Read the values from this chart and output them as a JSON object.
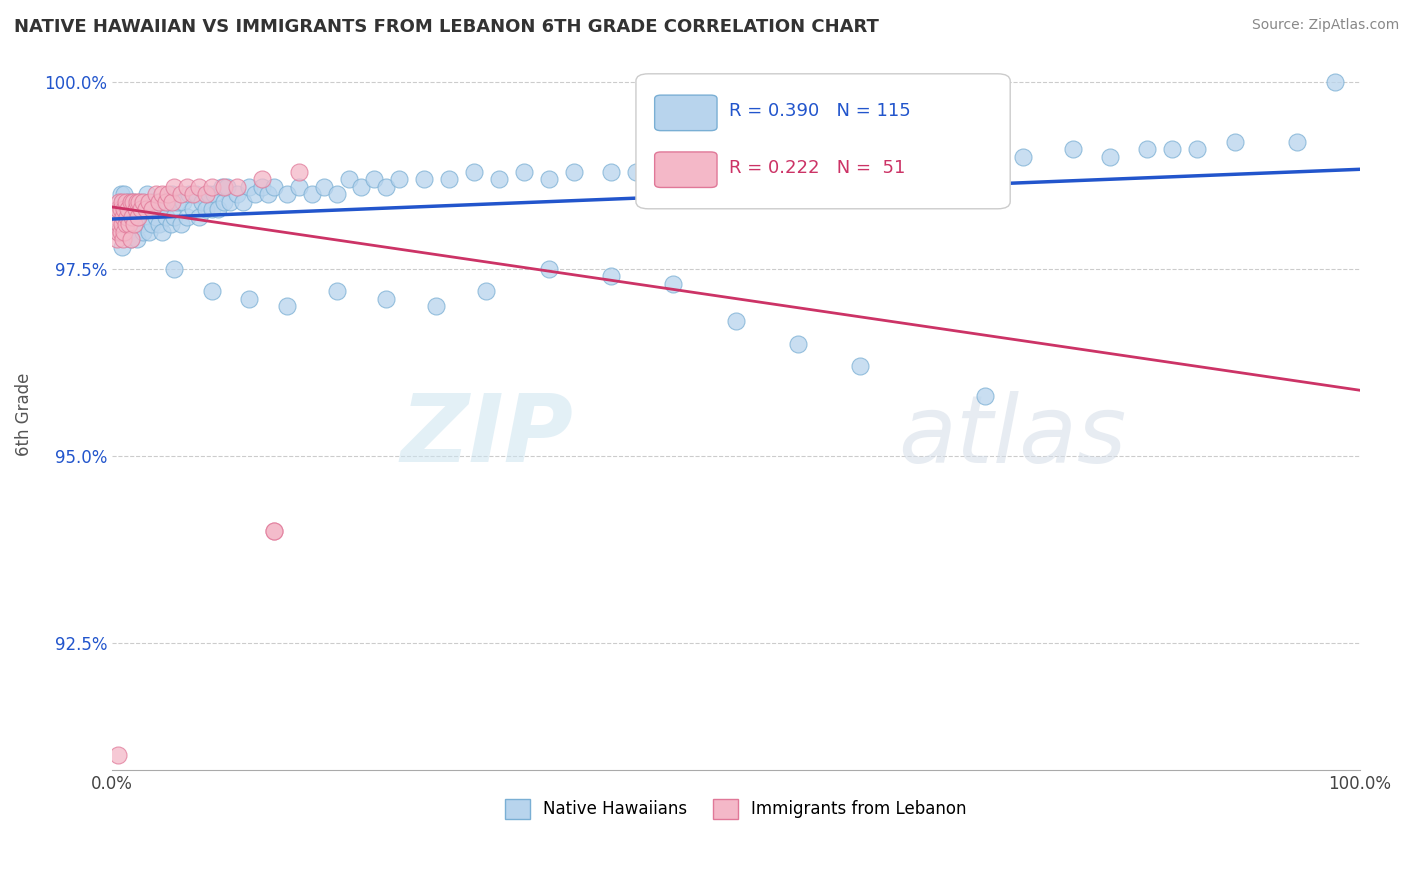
{
  "title": "NATIVE HAWAIIAN VS IMMIGRANTS FROM LEBANON 6TH GRADE CORRELATION CHART",
  "source": "Source: ZipAtlas.com",
  "ylabel": "6th Grade",
  "xmin": 0.0,
  "xmax": 1.0,
  "ymin": 0.908,
  "ymax": 1.003,
  "yticks": [
    0.925,
    0.95,
    0.975,
    1.0
  ],
  "ytick_labels": [
    "92.5%",
    "95.0%",
    "97.5%",
    "100.0%"
  ],
  "xticks": [
    0.0,
    1.0
  ],
  "xtick_labels": [
    "0.0%",
    "100.0%"
  ],
  "blue_fill": "#b8d4ed",
  "blue_edge": "#7aafd4",
  "blue_line": "#2255cc",
  "pink_fill": "#f4b8c8",
  "pink_edge": "#e07898",
  "pink_line": "#cc3366",
  "R_blue": 0.39,
  "N_blue": 115,
  "R_pink": 0.222,
  "N_pink": 51,
  "legend_blue": "Native Hawaiians",
  "legend_pink": "Immigrants from Lebanon",
  "watermark_zip": "ZIP",
  "watermark_atlas": "atlas",
  "blue_x": [
    0.005,
    0.005,
    0.007,
    0.008,
    0.01,
    0.01,
    0.012,
    0.013,
    0.015,
    0.015,
    0.017,
    0.018,
    0.02,
    0.02,
    0.022,
    0.023,
    0.025,
    0.025,
    0.027,
    0.028,
    0.03,
    0.03,
    0.032,
    0.033,
    0.035,
    0.037,
    0.038,
    0.04,
    0.04,
    0.042,
    0.043,
    0.045,
    0.047,
    0.048,
    0.05,
    0.052,
    0.055,
    0.057,
    0.06,
    0.062,
    0.065,
    0.067,
    0.07,
    0.072,
    0.075,
    0.078,
    0.08,
    0.082,
    0.085,
    0.088,
    0.09,
    0.092,
    0.095,
    0.1,
    0.105,
    0.11,
    0.115,
    0.12,
    0.125,
    0.13,
    0.14,
    0.15,
    0.16,
    0.17,
    0.18,
    0.19,
    0.2,
    0.21,
    0.22,
    0.23,
    0.25,
    0.27,
    0.29,
    0.31,
    0.33,
    0.35,
    0.37,
    0.4,
    0.42,
    0.44,
    0.46,
    0.48,
    0.5,
    0.52,
    0.55,
    0.57,
    0.6,
    0.63,
    0.65,
    0.67,
    0.7,
    0.73,
    0.77,
    0.8,
    0.83,
    0.85,
    0.87,
    0.9,
    0.95,
    0.98,
    0.05,
    0.08,
    0.11,
    0.14,
    0.18,
    0.22,
    0.26,
    0.3,
    0.35,
    0.4,
    0.45,
    0.5,
    0.55,
    0.6,
    0.7
  ],
  "blue_y": [
    0.983,
    0.98,
    0.985,
    0.978,
    0.982,
    0.985,
    0.98,
    0.984,
    0.979,
    0.983,
    0.981,
    0.984,
    0.982,
    0.979,
    0.983,
    0.981,
    0.984,
    0.98,
    0.983,
    0.985,
    0.98,
    0.983,
    0.981,
    0.984,
    0.982,
    0.984,
    0.981,
    0.983,
    0.98,
    0.984,
    0.982,
    0.984,
    0.981,
    0.985,
    0.982,
    0.984,
    0.981,
    0.984,
    0.982,
    0.985,
    0.983,
    0.985,
    0.982,
    0.984,
    0.983,
    0.985,
    0.983,
    0.985,
    0.983,
    0.986,
    0.984,
    0.986,
    0.984,
    0.985,
    0.984,
    0.986,
    0.985,
    0.986,
    0.985,
    0.986,
    0.985,
    0.986,
    0.985,
    0.986,
    0.985,
    0.987,
    0.986,
    0.987,
    0.986,
    0.987,
    0.987,
    0.987,
    0.988,
    0.987,
    0.988,
    0.987,
    0.988,
    0.988,
    0.988,
    0.989,
    0.988,
    0.989,
    0.988,
    0.989,
    0.988,
    0.989,
    0.989,
    0.989,
    0.99,
    0.989,
    0.99,
    0.99,
    0.991,
    0.99,
    0.991,
    0.991,
    0.991,
    0.992,
    0.992,
    1.0,
    0.975,
    0.972,
    0.971,
    0.97,
    0.972,
    0.971,
    0.97,
    0.972,
    0.975,
    0.974,
    0.973,
    0.968,
    0.965,
    0.962,
    0.958
  ],
  "pink_x": [
    0.003,
    0.004,
    0.005,
    0.005,
    0.006,
    0.006,
    0.007,
    0.007,
    0.008,
    0.008,
    0.009,
    0.009,
    0.01,
    0.01,
    0.011,
    0.011,
    0.012,
    0.013,
    0.014,
    0.015,
    0.015,
    0.016,
    0.017,
    0.018,
    0.019,
    0.02,
    0.021,
    0.022,
    0.023,
    0.025,
    0.027,
    0.03,
    0.032,
    0.035,
    0.038,
    0.04,
    0.043,
    0.045,
    0.048,
    0.05,
    0.055,
    0.06,
    0.065,
    0.07,
    0.075,
    0.08,
    0.09,
    0.1,
    0.12,
    0.15,
    0.13
  ],
  "pink_y": [
    0.982,
    0.979,
    0.983,
    0.98,
    0.981,
    0.984,
    0.98,
    0.983,
    0.981,
    0.984,
    0.979,
    0.982,
    0.98,
    0.983,
    0.981,
    0.984,
    0.982,
    0.983,
    0.981,
    0.984,
    0.979,
    0.982,
    0.984,
    0.981,
    0.983,
    0.984,
    0.982,
    0.984,
    0.983,
    0.984,
    0.983,
    0.984,
    0.983,
    0.985,
    0.984,
    0.985,
    0.984,
    0.985,
    0.984,
    0.986,
    0.985,
    0.986,
    0.985,
    0.986,
    0.985,
    0.986,
    0.986,
    0.986,
    0.987,
    0.988,
    0.94
  ]
}
